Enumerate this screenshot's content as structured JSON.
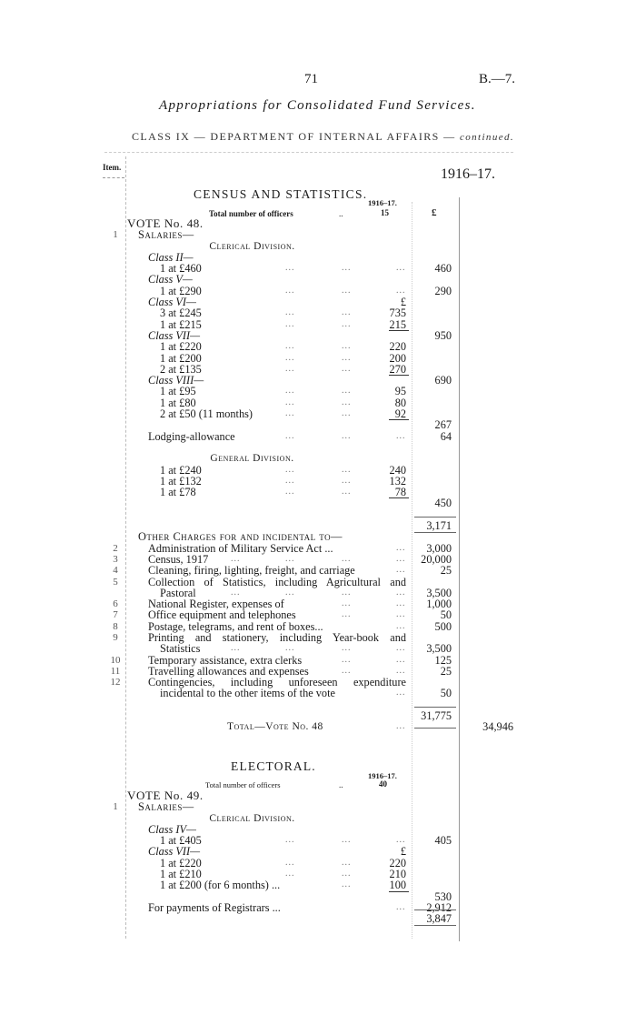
{
  "header": {
    "page_number": "71",
    "reference": "B.—7.",
    "title": "Appropriations for Consolidated Fund Services.",
    "class_heading": "CLASS IX — DEPARTMENT OF INTERNAL AFFAIRS —",
    "class_heading_continued": "continued.",
    "item_label": "Item.",
    "year": "1916–17."
  },
  "census": {
    "heading": "CENSUS AND STATISTICS.",
    "officers_year": "1916–17.",
    "officers_label": "Total number of officers",
    "officers_leader": "..",
    "officers_count": "15",
    "currency": "£",
    "rows": [
      {
        "text": "VOTE No. 48.",
        "level": 0,
        "style": "vote"
      },
      {
        "item": "1",
        "text": "Salaries—",
        "level": 1,
        "style": "sc"
      },
      {
        "text": "Clerical Division.",
        "style": "heading"
      },
      {
        "text": "Class II—",
        "level": 2,
        "style": "italic"
      },
      {
        "text": "1 at £460",
        "level": 3,
        "lead": 3,
        "b": "460"
      },
      {
        "text": "Class V—",
        "level": 2,
        "style": "italic"
      },
      {
        "text": "1 at £290",
        "level": 3,
        "lead": 3,
        "b": "290"
      },
      {
        "text": "Class VI—",
        "level": 2,
        "style": "italic",
        "a": "£"
      },
      {
        "text": "3 at £245",
        "level": 3,
        "lead": 2,
        "a": "735"
      },
      {
        "text": "1 at £215",
        "level": 3,
        "lead": 2,
        "a": "215"
      },
      {
        "text": "Class VII—",
        "level": 2,
        "style": "italic",
        "rule": true,
        "b": "950"
      },
      {
        "text": "1 at £220",
        "level": 3,
        "lead": 2,
        "a": "220"
      },
      {
        "text": "1 at £200",
        "level": 3,
        "lead": 2,
        "a": "200"
      },
      {
        "text": "2 at £135",
        "level": 3,
        "lead": 2,
        "a": "270"
      },
      {
        "text": "Class VIII—",
        "level": 2,
        "style": "italic",
        "rule": true,
        "b": "690"
      },
      {
        "text": "1 at £95",
        "level": 3,
        "lead": 2,
        "a": "95"
      },
      {
        "text": "1 at £80",
        "level": 3,
        "lead": 2,
        "a": "80"
      },
      {
        "text": "2 at £50 (11 months)",
        "level": 3,
        "lead": 2,
        "a": "92"
      },
      {
        "rule": true,
        "b": "267"
      },
      {
        "text": "Lodging-allowance",
        "level": 2,
        "lead": 3,
        "b": "64"
      },
      {},
      {
        "text": "General Division.",
        "style": "heading"
      },
      {
        "text": "1 at £240",
        "level": 3,
        "lead": 2,
        "a": "240"
      },
      {
        "text": "1 at £132",
        "level": 3,
        "lead": 2,
        "a": "132"
      },
      {
        "text": "1 at £78",
        "level": 3,
        "lead": 2,
        "a": "78"
      },
      {
        "rule": true,
        "b": "450"
      },
      {},
      {
        "b": "3,171",
        "box": true
      },
      {
        "text": "Other Charges for and incidental to—",
        "level": 1,
        "style": "sc"
      },
      {
        "item": "2",
        "text": "Administration of Military Service Act ...",
        "level": 2,
        "lead": 1,
        "b": "3,000"
      },
      {
        "item": "3",
        "text": "Census, 1917",
        "level": 2,
        "lead": 4,
        "b": "20,000"
      },
      {
        "item": "4",
        "text": "Cleaning, firing, lighting, freight, and carriage",
        "level": 2,
        "lead": 1,
        "b": "25"
      },
      {
        "item": "5",
        "text": "Collection of Statistics, including Agricultural and",
        "level": 2,
        "style": "just"
      },
      {
        "text": "Pastoral",
        "level": 3,
        "lead": 4,
        "b": "3,500"
      },
      {
        "item": "6",
        "text": "National Register, expenses of",
        "level": 2,
        "lead": 2,
        "b": "1,000"
      },
      {
        "item": "7",
        "text": "Office equipment and telephones",
        "level": 2,
        "lead": 2,
        "b": "50"
      },
      {
        "item": "8",
        "text": "Postage, telegrams, and rent of boxes...",
        "level": 2,
        "lead": 1,
        "b": "500"
      },
      {
        "item": "9",
        "text": "Printing and stationery, including Year-book and",
        "level": 2,
        "style": "just"
      },
      {
        "text": "Statistics",
        "level": 3,
        "lead": 4,
        "b": "3,500"
      },
      {
        "item": "10",
        "text": "Temporary assistance, extra clerks",
        "level": 2,
        "lead": 2,
        "b": "125"
      },
      {
        "item": "11",
        "text": "Travelling allowances and expenses",
        "level": 2,
        "lead": 2,
        "b": "25"
      },
      {
        "item": "12",
        "text": "Contingencies, including unforeseen expenditure",
        "level": 2,
        "style": "just"
      },
      {
        "text": "incidental to the other items of the vote",
        "level": 3,
        "lead": 1,
        "b": "50"
      },
      {},
      {
        "b": "31,775",
        "topline": true
      },
      {
        "text": "Total—Vote No. 48",
        "style": "total",
        "lead": 1,
        "c": "34,946",
        "topline_after": true
      }
    ]
  },
  "electoral": {
    "heading": "ELECTORAL.",
    "officers_year": "1916–17.",
    "officers_label": "Total number of officers",
    "officers_leader": "..",
    "officers_count": "40",
    "rows": [
      {
        "text": "VOTE No. 49.",
        "level": 0,
        "style": "vote"
      },
      {
        "item": "1",
        "text": "Salaries—",
        "level": 1,
        "style": "sc"
      },
      {
        "text": "Clerical Division.",
        "style": "heading"
      },
      {
        "text": "Class IV—",
        "level": 2,
        "style": "italic"
      },
      {
        "text": "1 at £405",
        "level": 3,
        "lead": 3,
        "b": "405"
      },
      {
        "text": "Class VII—",
        "level": 2,
        "style": "italic",
        "a": "£"
      },
      {
        "text": "1 at £220",
        "level": 3,
        "lead": 2,
        "a": "220"
      },
      {
        "text": "1 at £210",
        "level": 3,
        "lead": 2,
        "a": "210"
      },
      {
        "text": "1 at £200 (for 6 months) ...",
        "level": 3,
        "lead": 1,
        "a": "100"
      },
      {
        "rule": true,
        "b": "530"
      },
      {
        "text": "For payments of Registrars ...",
        "level": 2,
        "lead": 1,
        "b": "2,912"
      },
      {
        "b": "3,847",
        "box": true
      }
    ]
  }
}
